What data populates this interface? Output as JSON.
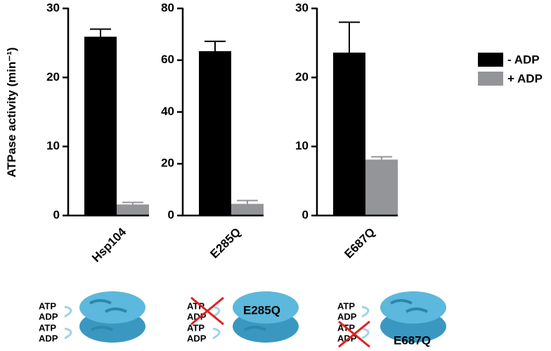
{
  "chart_data": [
    {
      "type": "bar",
      "ylabel": "ATPase activity (min⁻¹)",
      "categories": [
        "Hsp104"
      ],
      "series": [
        {
          "name": "- ADP",
          "color": "#000000",
          "values": [
            25.9
          ],
          "errors": [
            1.1
          ]
        },
        {
          "name": "+ ADP",
          "color": "#939598",
          "values": [
            1.6
          ],
          "errors": [
            0.3
          ]
        }
      ],
      "ylim": [
        0,
        30
      ],
      "yticks": [
        0,
        10,
        20,
        30
      ]
    },
    {
      "type": "bar",
      "categories": [
        "E285Q"
      ],
      "series": [
        {
          "color": "#000000",
          "values": [
            63.5
          ],
          "errors": [
            3.8
          ]
        },
        {
          "color": "#939598",
          "values": [
            4.5
          ],
          "errors": [
            1.3
          ]
        }
      ],
      "ylim": [
        0,
        80
      ],
      "yticks": [
        0,
        20,
        40,
        60,
        80
      ]
    },
    {
      "type": "bar",
      "categories": [
        "E687Q"
      ],
      "series": [
        {
          "color": "#000000",
          "values": [
            23.6
          ],
          "errors": [
            4.4
          ]
        },
        {
          "color": "#939598",
          "values": [
            8.1
          ],
          "errors": [
            0.4
          ]
        }
      ],
      "ylim": [
        0,
        30
      ],
      "yticks": [
        0,
        10,
        20,
        30
      ]
    }
  ],
  "diagrams": [
    {
      "labels": [
        "ATP",
        "ADP",
        "ATP",
        "ADP"
      ]
    },
    {
      "labels": [
        "ATP",
        "ADP",
        "ATP",
        "ADP"
      ],
      "mutation": "E285Q"
    },
    {
      "labels": [
        "ATP",
        "ADP",
        "ATP",
        "ADP"
      ],
      "mutation": "E687Q"
    }
  ]
}
